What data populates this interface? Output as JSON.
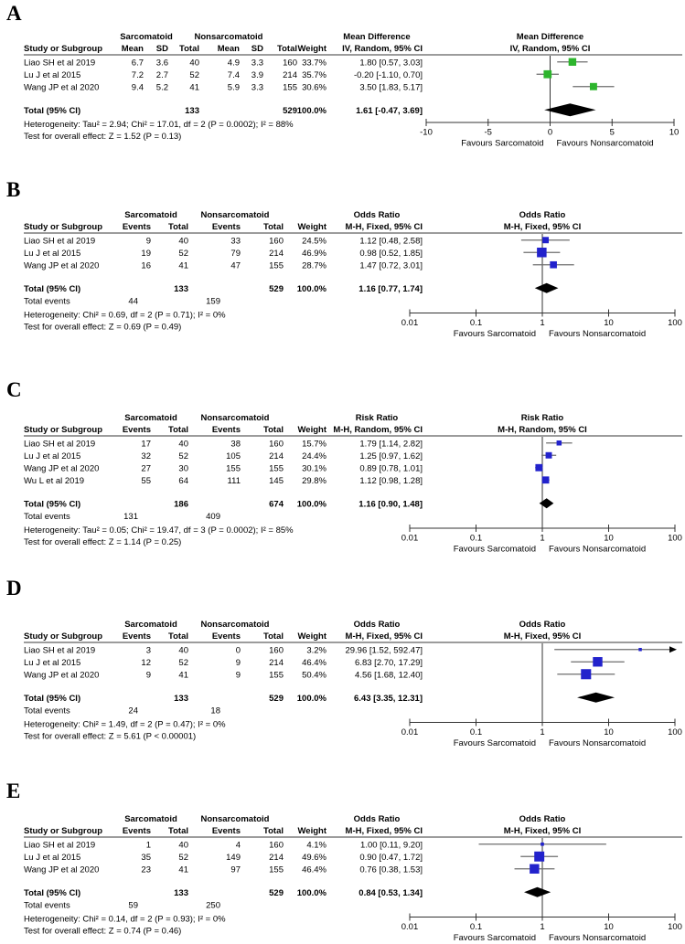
{
  "colors": {
    "background": "#ffffff",
    "text": "#000000",
    "marker_green": "#2DB52D",
    "marker_blue": "#2222CC",
    "diamond": "#000000",
    "ci_line": "#6e6e6e",
    "header_rule": "#7b7b7b",
    "axis": "#333333"
  },
  "chart_data": [
    {
      "type": "forest",
      "label": "A",
      "group1": "Sarcomatoid",
      "group2": "Nonsarcomatoid",
      "study_header": "Study or Subgroup",
      "effect_header": "Mean Difference",
      "method_header": "IV, Random, 95% CI",
      "columns": [
        "Mean",
        "SD",
        "Total",
        "Mean",
        "SD",
        "Total",
        "Weight"
      ],
      "table_type": "continuous",
      "scale": "linear",
      "axis_min": -10,
      "axis_max": 10,
      "null_value": 0,
      "ticks": [
        {
          "v": -10,
          "label": "-10"
        },
        {
          "v": -5,
          "label": "-5"
        },
        {
          "v": 0,
          "label": "0"
        },
        {
          "v": 5,
          "label": "5"
        },
        {
          "v": 10,
          "label": "10"
        }
      ],
      "marker_color": "#2DB52D",
      "studies": [
        {
          "name": "Liao SH et al 2019",
          "cells": [
            "6.7",
            "3.6",
            "40",
            "4.9",
            "3.3",
            "160",
            "33.7%"
          ],
          "ci_text": "1.80 [0.57, 3.03]",
          "est": 1.8,
          "lo": 0.57,
          "hi": 3.03,
          "weight": 33.7
        },
        {
          "name": "Lu J et al 2015",
          "cells": [
            "7.2",
            "2.7",
            "52",
            "7.4",
            "3.9",
            "214",
            "35.7%"
          ],
          "ci_text": "-0.20 [-1.10, 0.70]",
          "est": -0.2,
          "lo": -1.1,
          "hi": 0.7,
          "weight": 35.7
        },
        {
          "name": "Wang JP et al 2020",
          "cells": [
            "9.4",
            "5.2",
            "41",
            "5.9",
            "3.3",
            "155",
            "30.6%"
          ],
          "ci_text": "3.50 [1.83, 5.17]",
          "est": 3.5,
          "lo": 1.83,
          "hi": 5.17,
          "weight": 30.6
        }
      ],
      "total": {
        "label": "Total (95% CI)",
        "g1_total": "133",
        "g2_total": "529",
        "weight": "100.0%",
        "ci_text": "1.61 [-0.47, 3.69]",
        "est": 1.61,
        "lo": -0.47,
        "hi": 3.69
      },
      "total_events": null,
      "heterogeneity": "Heterogeneity: Tau² = 2.94; Chi² = 17.01, df = 2 (P = 0.0002); I² = 88%",
      "overall_test": "Test for overall effect: Z = 1.52 (P = 0.13)",
      "favours_left": "Favours Sarcomatoid",
      "favours_right": "Favours Nonsarcomatoid"
    },
    {
      "type": "forest",
      "label": "B",
      "group1": "Sarcomatoid",
      "group2": "Nonsarcomatoid",
      "study_header": "Study or Subgroup",
      "effect_header": "Odds Ratio",
      "method_header": "M-H, Fixed, 95% CI",
      "columns": [
        "Events",
        "Total",
        "Events",
        "Total",
        "Weight"
      ],
      "table_type": "dichotomous",
      "scale": "log",
      "axis_min": 0.01,
      "axis_max": 100,
      "null_value": 1,
      "ticks": [
        {
          "v": 0.01,
          "label": "0.01"
        },
        {
          "v": 0.1,
          "label": "0.1"
        },
        {
          "v": 1,
          "label": "1"
        },
        {
          "v": 10,
          "label": "10"
        },
        {
          "v": 100,
          "label": "100"
        }
      ],
      "marker_color": "#2222CC",
      "studies": [
        {
          "name": "Liao SH et al 2019",
          "cells": [
            "9",
            "40",
            "33",
            "160",
            "24.5%"
          ],
          "ci_text": "1.12 [0.48, 2.58]",
          "est": 1.12,
          "lo": 0.48,
          "hi": 2.58,
          "weight": 24.5
        },
        {
          "name": "Lu J et al 2015",
          "cells": [
            "19",
            "52",
            "79",
            "214",
            "46.9%"
          ],
          "ci_text": "0.98 [0.52, 1.85]",
          "est": 0.98,
          "lo": 0.52,
          "hi": 1.85,
          "weight": 46.9
        },
        {
          "name": "Wang JP et al 2020",
          "cells": [
            "16",
            "41",
            "47",
            "155",
            "28.7%"
          ],
          "ci_text": "1.47 [0.72, 3.01]",
          "est": 1.47,
          "lo": 0.72,
          "hi": 3.01,
          "weight": 28.7
        }
      ],
      "total": {
        "label": "Total (95% CI)",
        "g1_total": "133",
        "g2_total": "529",
        "weight": "100.0%",
        "ci_text": "1.16 [0.77, 1.74]",
        "est": 1.16,
        "lo": 0.77,
        "hi": 1.74
      },
      "total_events": {
        "label": "Total events",
        "g1": "44",
        "g2": "159"
      },
      "heterogeneity": "Heterogeneity: Chi² = 0.69, df = 2 (P = 0.71); I² = 0%",
      "overall_test": "Test for overall effect: Z = 0.69 (P = 0.49)",
      "favours_left": "Favours Sarcomatoid",
      "favours_right": "Favours Nonsarcomatoid"
    },
    {
      "type": "forest",
      "label": "C",
      "group1": "Sarcomatoid",
      "group2": "Nonsarcomatoid",
      "study_header": "Study or Subgroup",
      "effect_header": "Risk Ratio",
      "method_header": "M-H, Random, 95% CI",
      "columns": [
        "Events",
        "Total",
        "Events",
        "Total",
        "Weight"
      ],
      "table_type": "dichotomous",
      "scale": "log",
      "axis_min": 0.01,
      "axis_max": 100,
      "null_value": 1,
      "ticks": [
        {
          "v": 0.01,
          "label": "0.01"
        },
        {
          "v": 0.1,
          "label": "0.1"
        },
        {
          "v": 1,
          "label": "1"
        },
        {
          "v": 10,
          "label": "10"
        },
        {
          "v": 100,
          "label": "100"
        }
      ],
      "marker_color": "#2222CC",
      "studies": [
        {
          "name": "Liao SH et al 2019",
          "cells": [
            "17",
            "40",
            "38",
            "160",
            "15.7%"
          ],
          "ci_text": "1.79 [1.14, 2.82]",
          "est": 1.79,
          "lo": 1.14,
          "hi": 2.82,
          "weight": 15.7
        },
        {
          "name": "Lu J et al 2015",
          "cells": [
            "32",
            "52",
            "105",
            "214",
            "24.4%"
          ],
          "ci_text": "1.25 [0.97, 1.62]",
          "est": 1.25,
          "lo": 0.97,
          "hi": 1.62,
          "weight": 24.4
        },
        {
          "name": "Wang JP et al 2020",
          "cells": [
            "27",
            "30",
            "155",
            "155",
            "30.1%"
          ],
          "ci_text": "0.89 [0.78, 1.01]",
          "est": 0.89,
          "lo": 0.78,
          "hi": 1.01,
          "weight": 30.1
        },
        {
          "name": "Wu L et al 2019",
          "cells": [
            "55",
            "64",
            "111",
            "145",
            "29.8%"
          ],
          "ci_text": "1.12 [0.98, 1.28]",
          "est": 1.12,
          "lo": 0.98,
          "hi": 1.28,
          "weight": 29.8
        }
      ],
      "total": {
        "label": "Total (95% CI)",
        "g1_total": "186",
        "g2_total": "674",
        "weight": "100.0%",
        "ci_text": "1.16 [0.90, 1.48]",
        "est": 1.16,
        "lo": 0.9,
        "hi": 1.48
      },
      "total_events": {
        "label": "Total events",
        "g1": "131",
        "g2": "409"
      },
      "heterogeneity": "Heterogeneity: Tau² = 0.05; Chi² = 19.47, df = 3 (P = 0.0002); I² = 85%",
      "overall_test": "Test for overall effect: Z = 1.14 (P = 0.25)",
      "favours_left": "Favours Sarcomatoid",
      "favours_right": "Favours Nonsarcomatoid"
    },
    {
      "type": "forest",
      "label": "D",
      "group1": "Sarcomatoid",
      "group2": "Nonsarcomatoid",
      "study_header": "Study or Subgroup",
      "effect_header": "Odds Ratio",
      "method_header": "M-H, Fixed, 95% CI",
      "columns": [
        "Events",
        "Total",
        "Events",
        "Total",
        "Weight"
      ],
      "table_type": "dichotomous",
      "scale": "log",
      "axis_min": 0.01,
      "axis_max": 100,
      "null_value": 1,
      "ticks": [
        {
          "v": 0.01,
          "label": "0.01"
        },
        {
          "v": 0.1,
          "label": "0.1"
        },
        {
          "v": 1,
          "label": "1"
        },
        {
          "v": 10,
          "label": "10"
        },
        {
          "v": 100,
          "label": "100"
        }
      ],
      "marker_color": "#2222CC",
      "studies": [
        {
          "name": "Liao SH et al 2019",
          "cells": [
            "3",
            "40",
            "0",
            "160",
            "3.2%"
          ],
          "ci_text": "29.96 [1.52, 592.47]",
          "est": 29.96,
          "lo": 1.52,
          "hi": 592.47,
          "weight": 3.2
        },
        {
          "name": "Lu J et al 2015",
          "cells": [
            "12",
            "52",
            "9",
            "214",
            "46.4%"
          ],
          "ci_text": "6.83 [2.70, 17.29]",
          "est": 6.83,
          "lo": 2.7,
          "hi": 17.29,
          "weight": 46.4
        },
        {
          "name": "Wang JP et al 2020",
          "cells": [
            "9",
            "41",
            "9",
            "155",
            "50.4%"
          ],
          "ci_text": "4.56 [1.68, 12.40]",
          "est": 4.56,
          "lo": 1.68,
          "hi": 12.4,
          "weight": 50.4
        }
      ],
      "total": {
        "label": "Total (95% CI)",
        "g1_total": "133",
        "g2_total": "529",
        "weight": "100.0%",
        "ci_text": "6.43 [3.35, 12.31]",
        "est": 6.43,
        "lo": 3.35,
        "hi": 12.31
      },
      "total_events": {
        "label": "Total events",
        "g1": "24",
        "g2": "18"
      },
      "heterogeneity": "Heterogeneity: Chi² = 1.49, df = 2 (P = 0.47); I² = 0%",
      "overall_test": "Test for overall effect: Z = 5.61 (P < 0.00001)",
      "favours_left": "Favours Sarcomatoid",
      "favours_right": "Favours Nonsarcomatoid"
    },
    {
      "type": "forest",
      "label": "E",
      "group1": "Sarcomatoid",
      "group2": "Nonsarcomatoid",
      "study_header": "Study or Subgroup",
      "effect_header": "Odds Ratio",
      "method_header": "M-H, Fixed, 95% CI",
      "columns": [
        "Events",
        "Total",
        "Events",
        "Total",
        "Weight"
      ],
      "table_type": "dichotomous",
      "scale": "log",
      "axis_min": 0.01,
      "axis_max": 100,
      "null_value": 1,
      "ticks": [
        {
          "v": 0.01,
          "label": "0.01"
        },
        {
          "v": 0.1,
          "label": "0.1"
        },
        {
          "v": 1,
          "label": "1"
        },
        {
          "v": 10,
          "label": "10"
        },
        {
          "v": 100,
          "label": "100"
        }
      ],
      "marker_color": "#2222CC",
      "studies": [
        {
          "name": "Liao SH et al 2019",
          "cells": [
            "1",
            "40",
            "4",
            "160",
            "4.1%"
          ],
          "ci_text": "1.00 [0.11, 9.20]",
          "est": 1.0,
          "lo": 0.11,
          "hi": 9.2,
          "weight": 4.1
        },
        {
          "name": "Lu J et al 2015",
          "cells": [
            "35",
            "52",
            "149",
            "214",
            "49.6%"
          ],
          "ci_text": "0.90 [0.47, 1.72]",
          "est": 0.9,
          "lo": 0.47,
          "hi": 1.72,
          "weight": 49.6
        },
        {
          "name": "Wang JP et al 2020",
          "cells": [
            "23",
            "41",
            "97",
            "155",
            "46.4%"
          ],
          "ci_text": "0.76 [0.38, 1.53]",
          "est": 0.76,
          "lo": 0.38,
          "hi": 1.53,
          "weight": 46.4
        }
      ],
      "total": {
        "label": "Total (95% CI)",
        "g1_total": "133",
        "g2_total": "529",
        "weight": "100.0%",
        "ci_text": "0.84 [0.53, 1.34]",
        "est": 0.84,
        "lo": 0.53,
        "hi": 1.34
      },
      "total_events": {
        "label": "Total events",
        "g1": "59",
        "g2": "250"
      },
      "heterogeneity": "Heterogeneity: Chi² = 0.14, df = 2 (P = 0.93); I² = 0%",
      "overall_test": "Test for overall effect: Z = 0.74 (P = 0.46)",
      "favours_left": "Favours Sarcomatoid",
      "favours_right": "Favours Nonsarcomatoid"
    }
  ]
}
